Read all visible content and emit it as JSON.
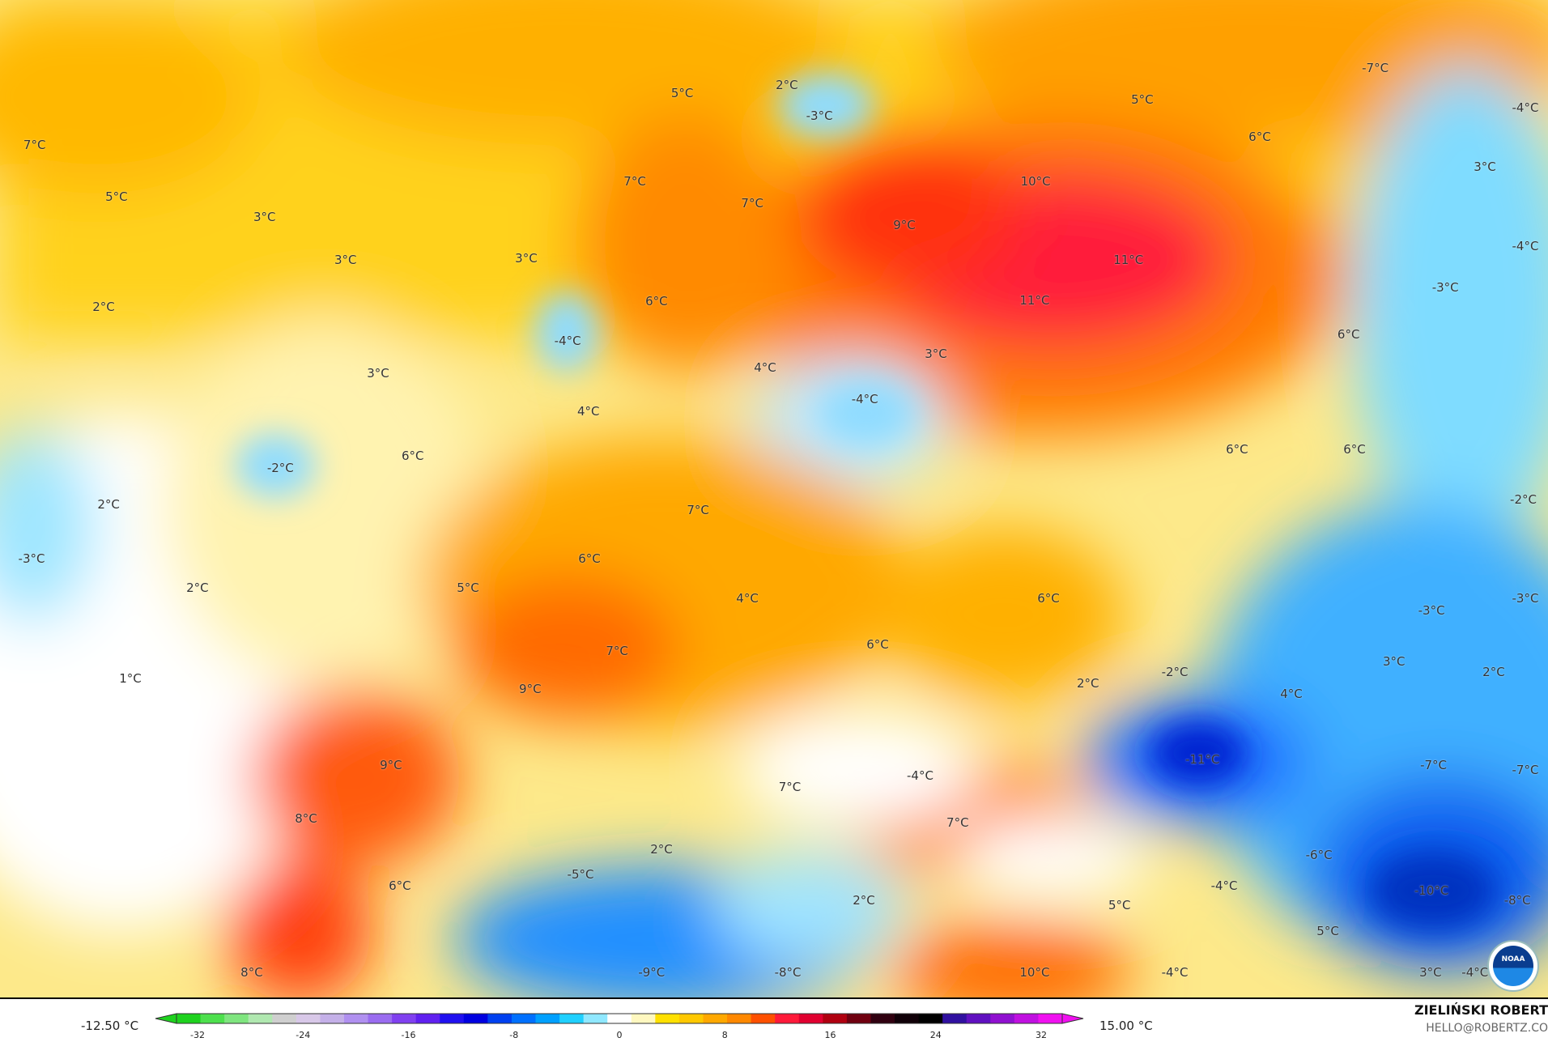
{
  "map": {
    "labels": [
      "7°C",
      "5°C",
      "3°C",
      "3°C",
      "2°C",
      "3°C",
      "-2°C",
      "6°C",
      "2°C",
      "-3°C",
      "2°C",
      "1°C",
      "5°C",
      "2°C",
      "-3°C",
      "7°C",
      "7°C",
      "3°C",
      "6°C",
      "-4°C",
      "4°C",
      "4°C",
      "5°C",
      "6°C",
      "-7°C",
      "-4°C",
      "3°C",
      "10°C",
      "9°C",
      "11°C",
      "11°C",
      "-4°C",
      "-3°C",
      "6°C",
      "3°C",
      "-4°C",
      "6°C",
      "6°C",
      "-2°C",
      "7°C",
      "6°C",
      "5°C",
      "4°C",
      "6°C",
      "-3°C",
      "-3°C",
      "6°C",
      "7°C",
      "9°C",
      "2°C",
      "-2°C",
      "3°C",
      "2°C",
      "4°C",
      "9°C",
      "-4°C",
      "-11°C",
      "-7°C",
      "-7°C",
      "8°C",
      "7°C",
      "7°C",
      "2°C",
      "-6°C",
      "-5°C",
      "6°C",
      "2°C",
      "5°C",
      "-4°C",
      "-10°C",
      "-8°C",
      "5°C",
      "8°C",
      "-9°C",
      "-8°C",
      "10°C",
      "-4°C",
      "3°C",
      "-4°C"
    ],
    "logo": "NOAA"
  },
  "legend": {
    "min_label": "-12.50 °C",
    "max_label": "15.00 °C",
    "ticks": [
      "-32",
      "-24",
      "-16",
      "-8",
      "0",
      "8",
      "16",
      "24",
      "32"
    ],
    "colors": [
      "#1ed21e",
      "#4de04d",
      "#7fe57f",
      "#b0e8b0",
      "#cfcfcf",
      "#d8c8e8",
      "#c4b0e8",
      "#b090f0",
      "#9a6cf0",
      "#8040f0",
      "#6020f0",
      "#2010f0",
      "#0000e0",
      "#0040f0",
      "#0070ff",
      "#00a0ff",
      "#20d0ff",
      "#90e8ff",
      "#ffffff",
      "#fff8c0",
      "#ffe000",
      "#ffc800",
      "#ffa800",
      "#ff8800",
      "#ff5000",
      "#ff1a3a",
      "#e00030",
      "#b00010",
      "#700010",
      "#300010",
      "#100008",
      "#000000",
      "#3010a0",
      "#6010c0",
      "#9010d0",
      "#c010e0",
      "#f010f0"
    ]
  },
  "credit": {
    "name": "ZIELIŃSKI ROBERT",
    "email": "HELLO@ROBERTZ.CO"
  }
}
